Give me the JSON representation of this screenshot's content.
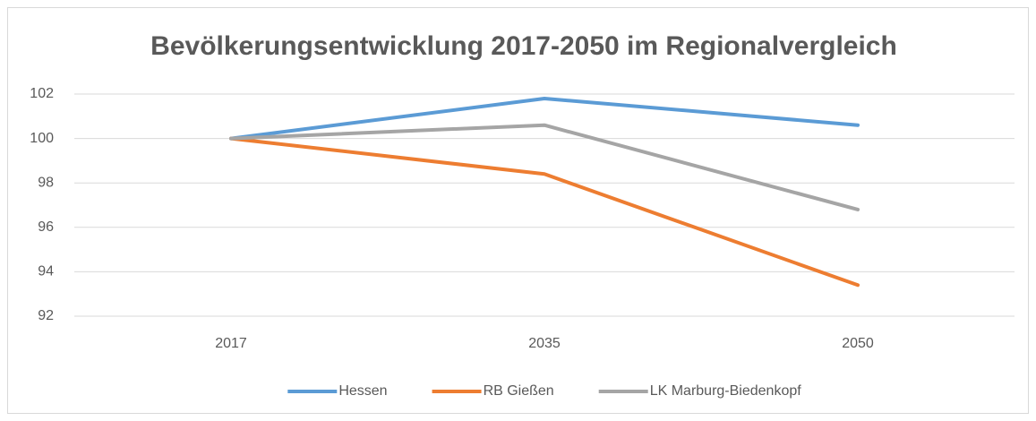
{
  "chart_data": {
    "type": "line",
    "title": "Bevölkerungsentwicklung 2017-2050 im Regionalvergleich",
    "categories": [
      "2017",
      "2035",
      "2050"
    ],
    "series": [
      {
        "name": "Hessen",
        "color": "#5b9bd5",
        "values": [
          100,
          101.8,
          100.6
        ]
      },
      {
        "name": "RB Gießen",
        "color": "#ed7d31",
        "values": [
          100,
          98.4,
          93.4
        ]
      },
      {
        "name": "LK Marburg-Biedenkopf",
        "color": "#a5a5a5",
        "values": [
          100,
          100.6,
          96.8
        ]
      }
    ],
    "ylim": [
      92,
      102
    ],
    "yticks": [
      92,
      94,
      96,
      98,
      100,
      102
    ],
    "grid": true,
    "legend": "bottom"
  }
}
